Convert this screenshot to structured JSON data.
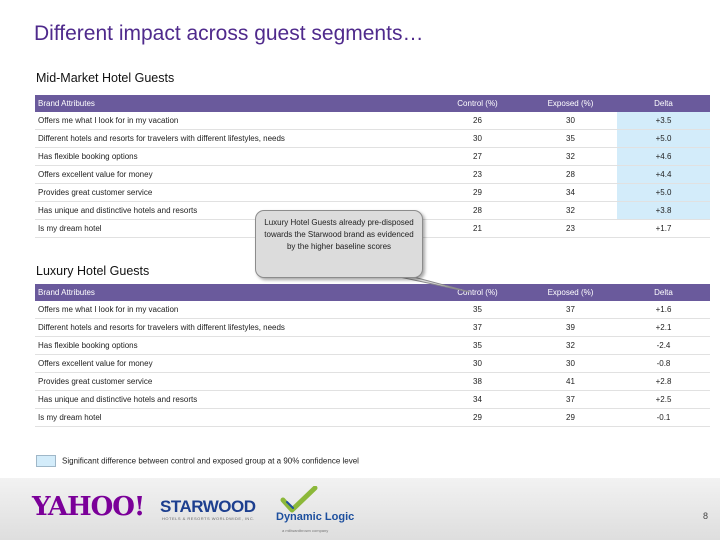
{
  "title": "Different impact across guest segments…",
  "columns": {
    "attribute": "Brand Attributes",
    "control": "Control (%)",
    "exposed": "Exposed (%)",
    "delta": "Delta"
  },
  "mid_market": {
    "heading": "Mid-Market Hotel Guests",
    "rows": [
      {
        "attribute": "Offers me what I look for in my vacation",
        "control": "26",
        "exposed": "30",
        "delta": "+3.5",
        "significant": true
      },
      {
        "attribute": "Different hotels and resorts for travelers with different lifestyles, needs",
        "control": "30",
        "exposed": "35",
        "delta": "+5.0",
        "significant": true
      },
      {
        "attribute": "Has flexible booking options",
        "control": "27",
        "exposed": "32",
        "delta": "+4.6",
        "significant": true
      },
      {
        "attribute": "Offers excellent value for money",
        "control": "23",
        "exposed": "28",
        "delta": "+4.4",
        "significant": true
      },
      {
        "attribute": "Provides great customer service",
        "control": "29",
        "exposed": "34",
        "delta": "+5.0",
        "significant": true
      },
      {
        "attribute": "Has unique and distinctive hotels and resorts",
        "control": "28",
        "exposed": "32",
        "delta": "+3.8",
        "significant": true
      },
      {
        "attribute": "Is my dream hotel",
        "control": "21",
        "exposed": "23",
        "delta": "+1.7",
        "significant": false
      }
    ]
  },
  "luxury": {
    "heading": "Luxury Hotel Guests",
    "rows": [
      {
        "attribute": "Offers me what I look for in my vacation",
        "control": "35",
        "exposed": "37",
        "delta": "+1.6",
        "significant": false
      },
      {
        "attribute": "Different hotels and resorts for travelers with different lifestyles, needs",
        "control": "37",
        "exposed": "39",
        "delta": "+2.1",
        "significant": false
      },
      {
        "attribute": "Has flexible booking options",
        "control": "35",
        "exposed": "32",
        "delta": "-2.4",
        "significant": false
      },
      {
        "attribute": "Offers excellent value for money",
        "control": "30",
        "exposed": "30",
        "delta": "-0.8",
        "significant": false
      },
      {
        "attribute": "Provides great customer service",
        "control": "38",
        "exposed": "41",
        "delta": "+2.8",
        "significant": false
      },
      {
        "attribute": "Has unique and distinctive hotels and resorts",
        "control": "34",
        "exposed": "37",
        "delta": "+2.5",
        "significant": false
      },
      {
        "attribute": "Is my dream hotel",
        "control": "29",
        "exposed": "29",
        "delta": "-0.1",
        "significant": false
      }
    ]
  },
  "callout": "Luxury Hotel Guests already pre-disposed towards the Starwood brand as evidenced by the higher baseline scores",
  "legend": "Significant difference between control and exposed group at a 90% confidence level",
  "colors": {
    "title": "#4f2a8c",
    "header_bg": "#6a5a9c",
    "significant_bg": "#d3ecfa",
    "yahoo": "#7b0099",
    "starwood": "#1d3f8f"
  },
  "logos": {
    "yahoo": "YAHOO!",
    "starwood": "STARWOOD",
    "starwood_sub": "HOTELS & RESORTS WORLDWIDE, INC.",
    "dynamic_logic": "Dynamic Logic",
    "dynamic_logic_sub": "a millwardbrown company"
  },
  "page_number": "8"
}
